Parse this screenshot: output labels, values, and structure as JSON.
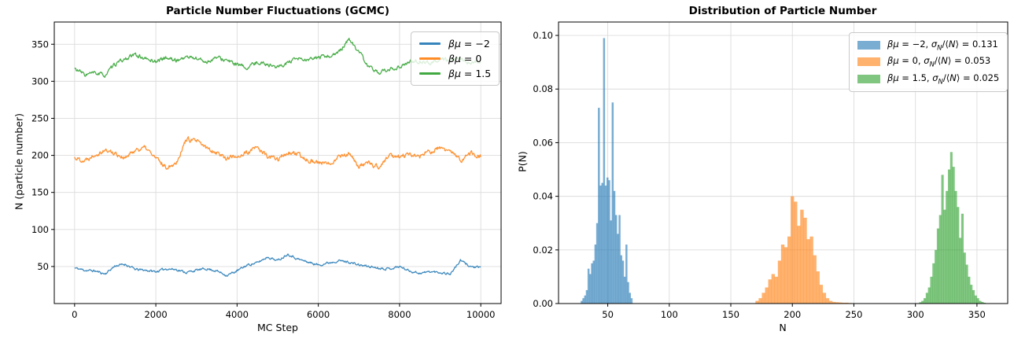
{
  "chart_data": [
    {
      "type": "line",
      "title": "Particle Number Fluctuations (GCMC)",
      "xlabel": "MC Step",
      "ylabel": "N (particle number)",
      "xlim": [
        -500,
        10500
      ],
      "ylim": [
        0,
        380
      ],
      "xticks": [
        0,
        2000,
        4000,
        6000,
        8000,
        10000
      ],
      "xtick_labels": [
        "0",
        "2000",
        "4000",
        "6000",
        "8000",
        "10000"
      ],
      "yticks": [
        50,
        100,
        150,
        200,
        250,
        300,
        350
      ],
      "ytick_labels": [
        "50",
        "100",
        "150",
        "200",
        "250",
        "300",
        "350"
      ],
      "grid": true,
      "legend_position": "upper right",
      "anchor_step": 250,
      "series": [
        {
          "name": "beta-mu = -2",
          "color": "#1f77b4",
          "line_alpha": 0.85,
          "mean": 48,
          "noise_amp": 1.3,
          "seed": 11,
          "anchors": [
            48,
            45,
            44,
            40,
            51,
            53,
            46,
            45,
            43,
            47,
            46,
            42,
            45,
            47,
            44,
            38,
            44,
            52,
            55,
            63,
            58,
            67,
            60,
            56,
            52,
            55,
            58,
            56,
            52,
            50,
            48,
            47,
            50,
            44,
            41,
            43,
            42,
            40,
            58,
            50,
            48
          ]
        },
        {
          "name": "beta-mu = 0",
          "color": "#ff7f0e",
          "line_alpha": 0.85,
          "mean": 200,
          "noise_amp": 2.6,
          "seed": 22,
          "anchors": [
            197,
            193,
            202,
            207,
            203,
            196,
            208,
            210,
            196,
            184,
            190,
            222,
            219,
            210,
            204,
            196,
            199,
            203,
            211,
            198,
            195,
            204,
            200,
            194,
            190,
            188,
            199,
            202,
            185,
            189,
            184,
            200,
            198,
            201,
            199,
            205,
            210,
            205,
            193,
            203,
            198
          ]
        },
        {
          "name": "beta-mu = 1.5",
          "color": "#2ca02c",
          "line_alpha": 0.85,
          "mean": 327,
          "noise_amp": 2.2,
          "seed": 33,
          "anchors": [
            317,
            309,
            311,
            308,
            323,
            330,
            336,
            330,
            327,
            332,
            328,
            333,
            331,
            326,
            332,
            328,
            322,
            318,
            326,
            323,
            319,
            325,
            330,
            328,
            332,
            334,
            338,
            357,
            340,
            318,
            312,
            315,
            320,
            326,
            327,
            325,
            330,
            328,
            330,
            325,
            327
          ]
        }
      ],
      "legend": {
        "items": [
          {
            "math": "βμ",
            "eq": " = −2"
          },
          {
            "math": "βμ",
            "eq": " = 0"
          },
          {
            "math": "βμ",
            "eq": " = 1.5"
          }
        ]
      }
    },
    {
      "type": "bar",
      "title": "Distribution of Particle Number",
      "xlabel": "N",
      "ylabel": "P(N)",
      "xlim": [
        10,
        375
      ],
      "ylim": [
        0,
        0.105
      ],
      "xticks": [
        50,
        100,
        150,
        200,
        250,
        300,
        350
      ],
      "xtick_labels": [
        "50",
        "100",
        "150",
        "200",
        "250",
        "300",
        "350"
      ],
      "yticks": [
        0.0,
        0.02,
        0.04,
        0.06,
        0.08,
        0.1
      ],
      "ytick_labels": [
        "0.00",
        "0.02",
        "0.04",
        "0.06",
        "0.08",
        "0.10"
      ],
      "grid": true,
      "legend_position": "upper right",
      "series": [
        {
          "name": "beta-mu = -2",
          "color": "#1f77b4",
          "fill_alpha": 0.6,
          "bin_start": 28,
          "bin_width": 1.4,
          "heights": [
            0.001,
            0.002,
            0.003,
            0.005,
            0.013,
            0.011,
            0.015,
            0.016,
            0.022,
            0.03,
            0.073,
            0.044,
            0.045,
            0.099,
            0.044,
            0.047,
            0.046,
            0.031,
            0.075,
            0.042,
            0.033,
            0.026,
            0.033,
            0.018,
            0.016,
            0.01,
            0.022,
            0.008,
            0.004,
            0.002
          ]
        },
        {
          "name": "beta-mu = 0",
          "color": "#ff7f0e",
          "fill_alpha": 0.6,
          "bin_start": 170,
          "bin_width": 2.6,
          "heights": [
            0.001,
            0.002,
            0.004,
            0.006,
            0.009,
            0.011,
            0.01,
            0.016,
            0.022,
            0.021,
            0.025,
            0.04,
            0.038,
            0.029,
            0.035,
            0.032,
            0.024,
            0.025,
            0.018,
            0.012,
            0.007,
            0.004,
            0.002,
            0.001,
            0.0006,
            0.0005,
            0.0004,
            0.0003,
            0.0003,
            0.0002
          ]
        },
        {
          "name": "beta-mu = 1.5",
          "color": "#2ca02c",
          "fill_alpha": 0.6,
          "bin_start": 303,
          "bin_width": 1.8,
          "heights": [
            0.0005,
            0.001,
            0.002,
            0.004,
            0.006,
            0.01,
            0.015,
            0.02,
            0.028,
            0.033,
            0.048,
            0.035,
            0.042,
            0.05,
            0.0565,
            0.051,
            0.042,
            0.036,
            0.0245,
            0.0335,
            0.019,
            0.0145,
            0.01,
            0.007,
            0.005,
            0.003,
            0.002,
            0.001,
            0.0006,
            0.0003
          ]
        }
      ],
      "legend": {
        "items": [
          {
            "math": "βμ",
            "eq": " = −2, ",
            "sigma": "σ",
            "sub": "N",
            "sep": "/⟨",
            "n": "N",
            "val": "⟩ = 0.131"
          },
          {
            "math": "βμ",
            "eq": " = 0, ",
            "sigma": "σ",
            "sub": "N",
            "sep": "/⟨",
            "n": "N",
            "val": "⟩ = 0.053"
          },
          {
            "math": "βμ",
            "eq": " = 1.5, ",
            "sigma": "σ",
            "sub": "N",
            "sep": "/⟨",
            "n": "N",
            "val": "⟩ = 0.025"
          }
        ]
      }
    }
  ]
}
